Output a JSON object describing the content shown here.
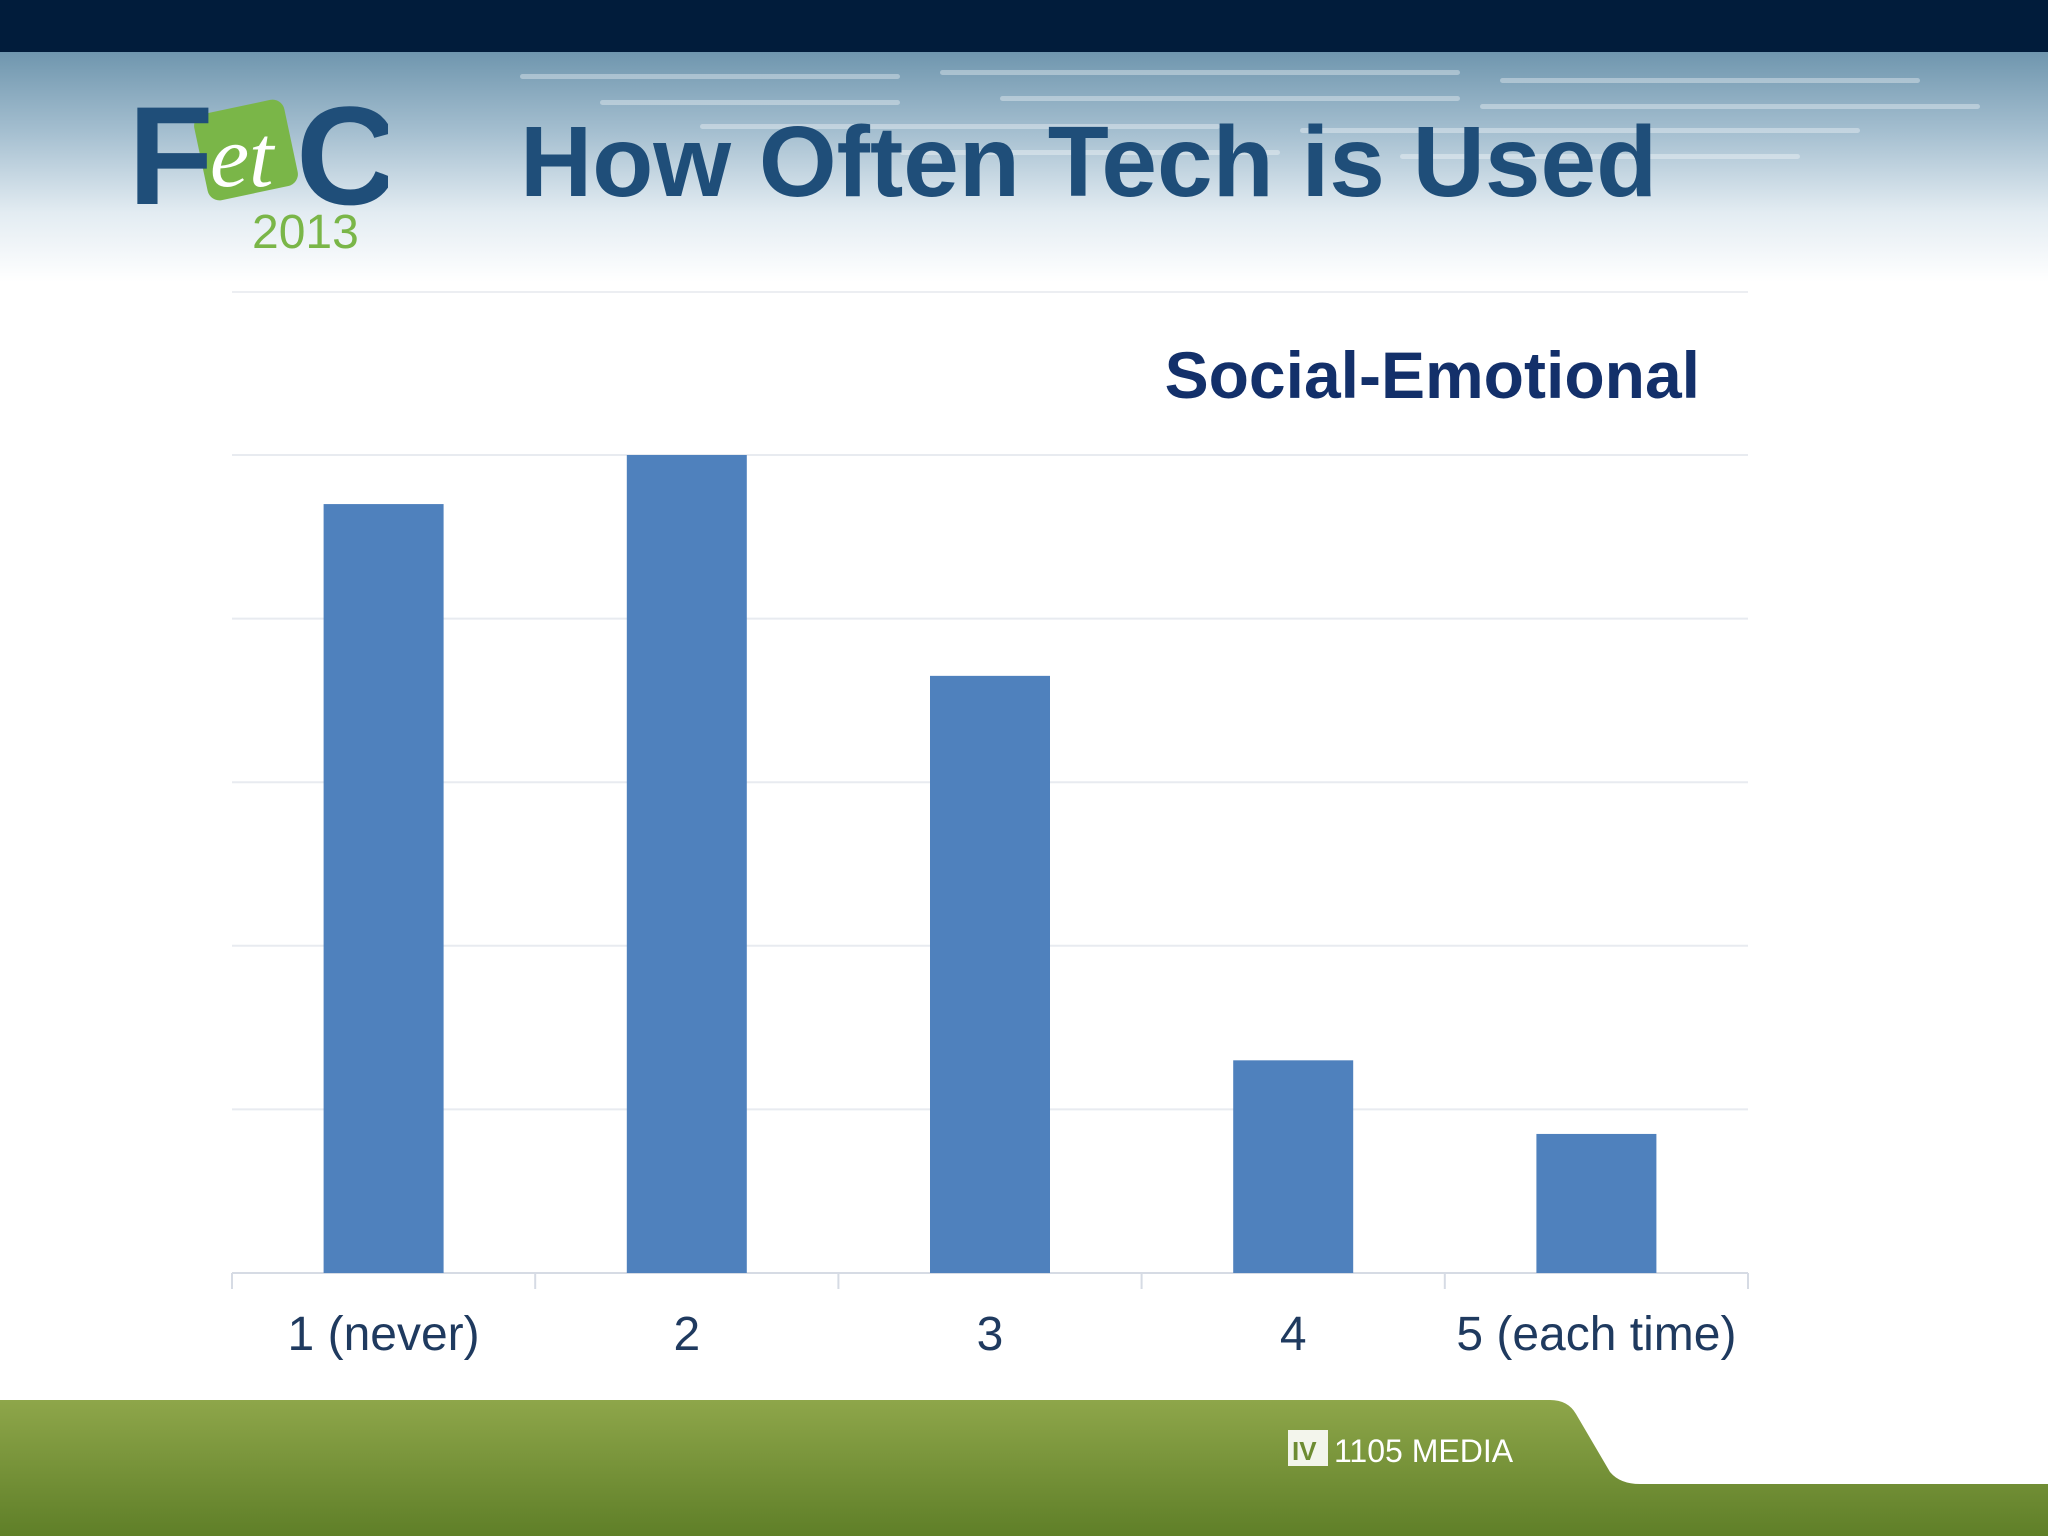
{
  "slide": {
    "title": "How Often Tech is Used",
    "logo": {
      "text": "FetC",
      "year": "2013"
    },
    "footer_brand": "1105 MEDIA"
  },
  "colors": {
    "topbar": "#011c3b",
    "title": "#1f4e79",
    "chart_title": "#13306a",
    "bar": "#4f81bd",
    "logo_blue": "#1f4e79",
    "logo_green": "#7ab648",
    "footer_green": "#7c9a3e"
  },
  "chart_data": {
    "type": "bar",
    "title": "Social-Emotional",
    "categories": [
      "1 (never)",
      "2",
      "3",
      "4",
      "5 (each time)"
    ],
    "values": [
      4.7,
      5.0,
      3.65,
      1.3,
      0.85
    ],
    "ylim": [
      0,
      5
    ],
    "grid": true,
    "legend": "none",
    "xlabel": "",
    "ylabel": ""
  }
}
